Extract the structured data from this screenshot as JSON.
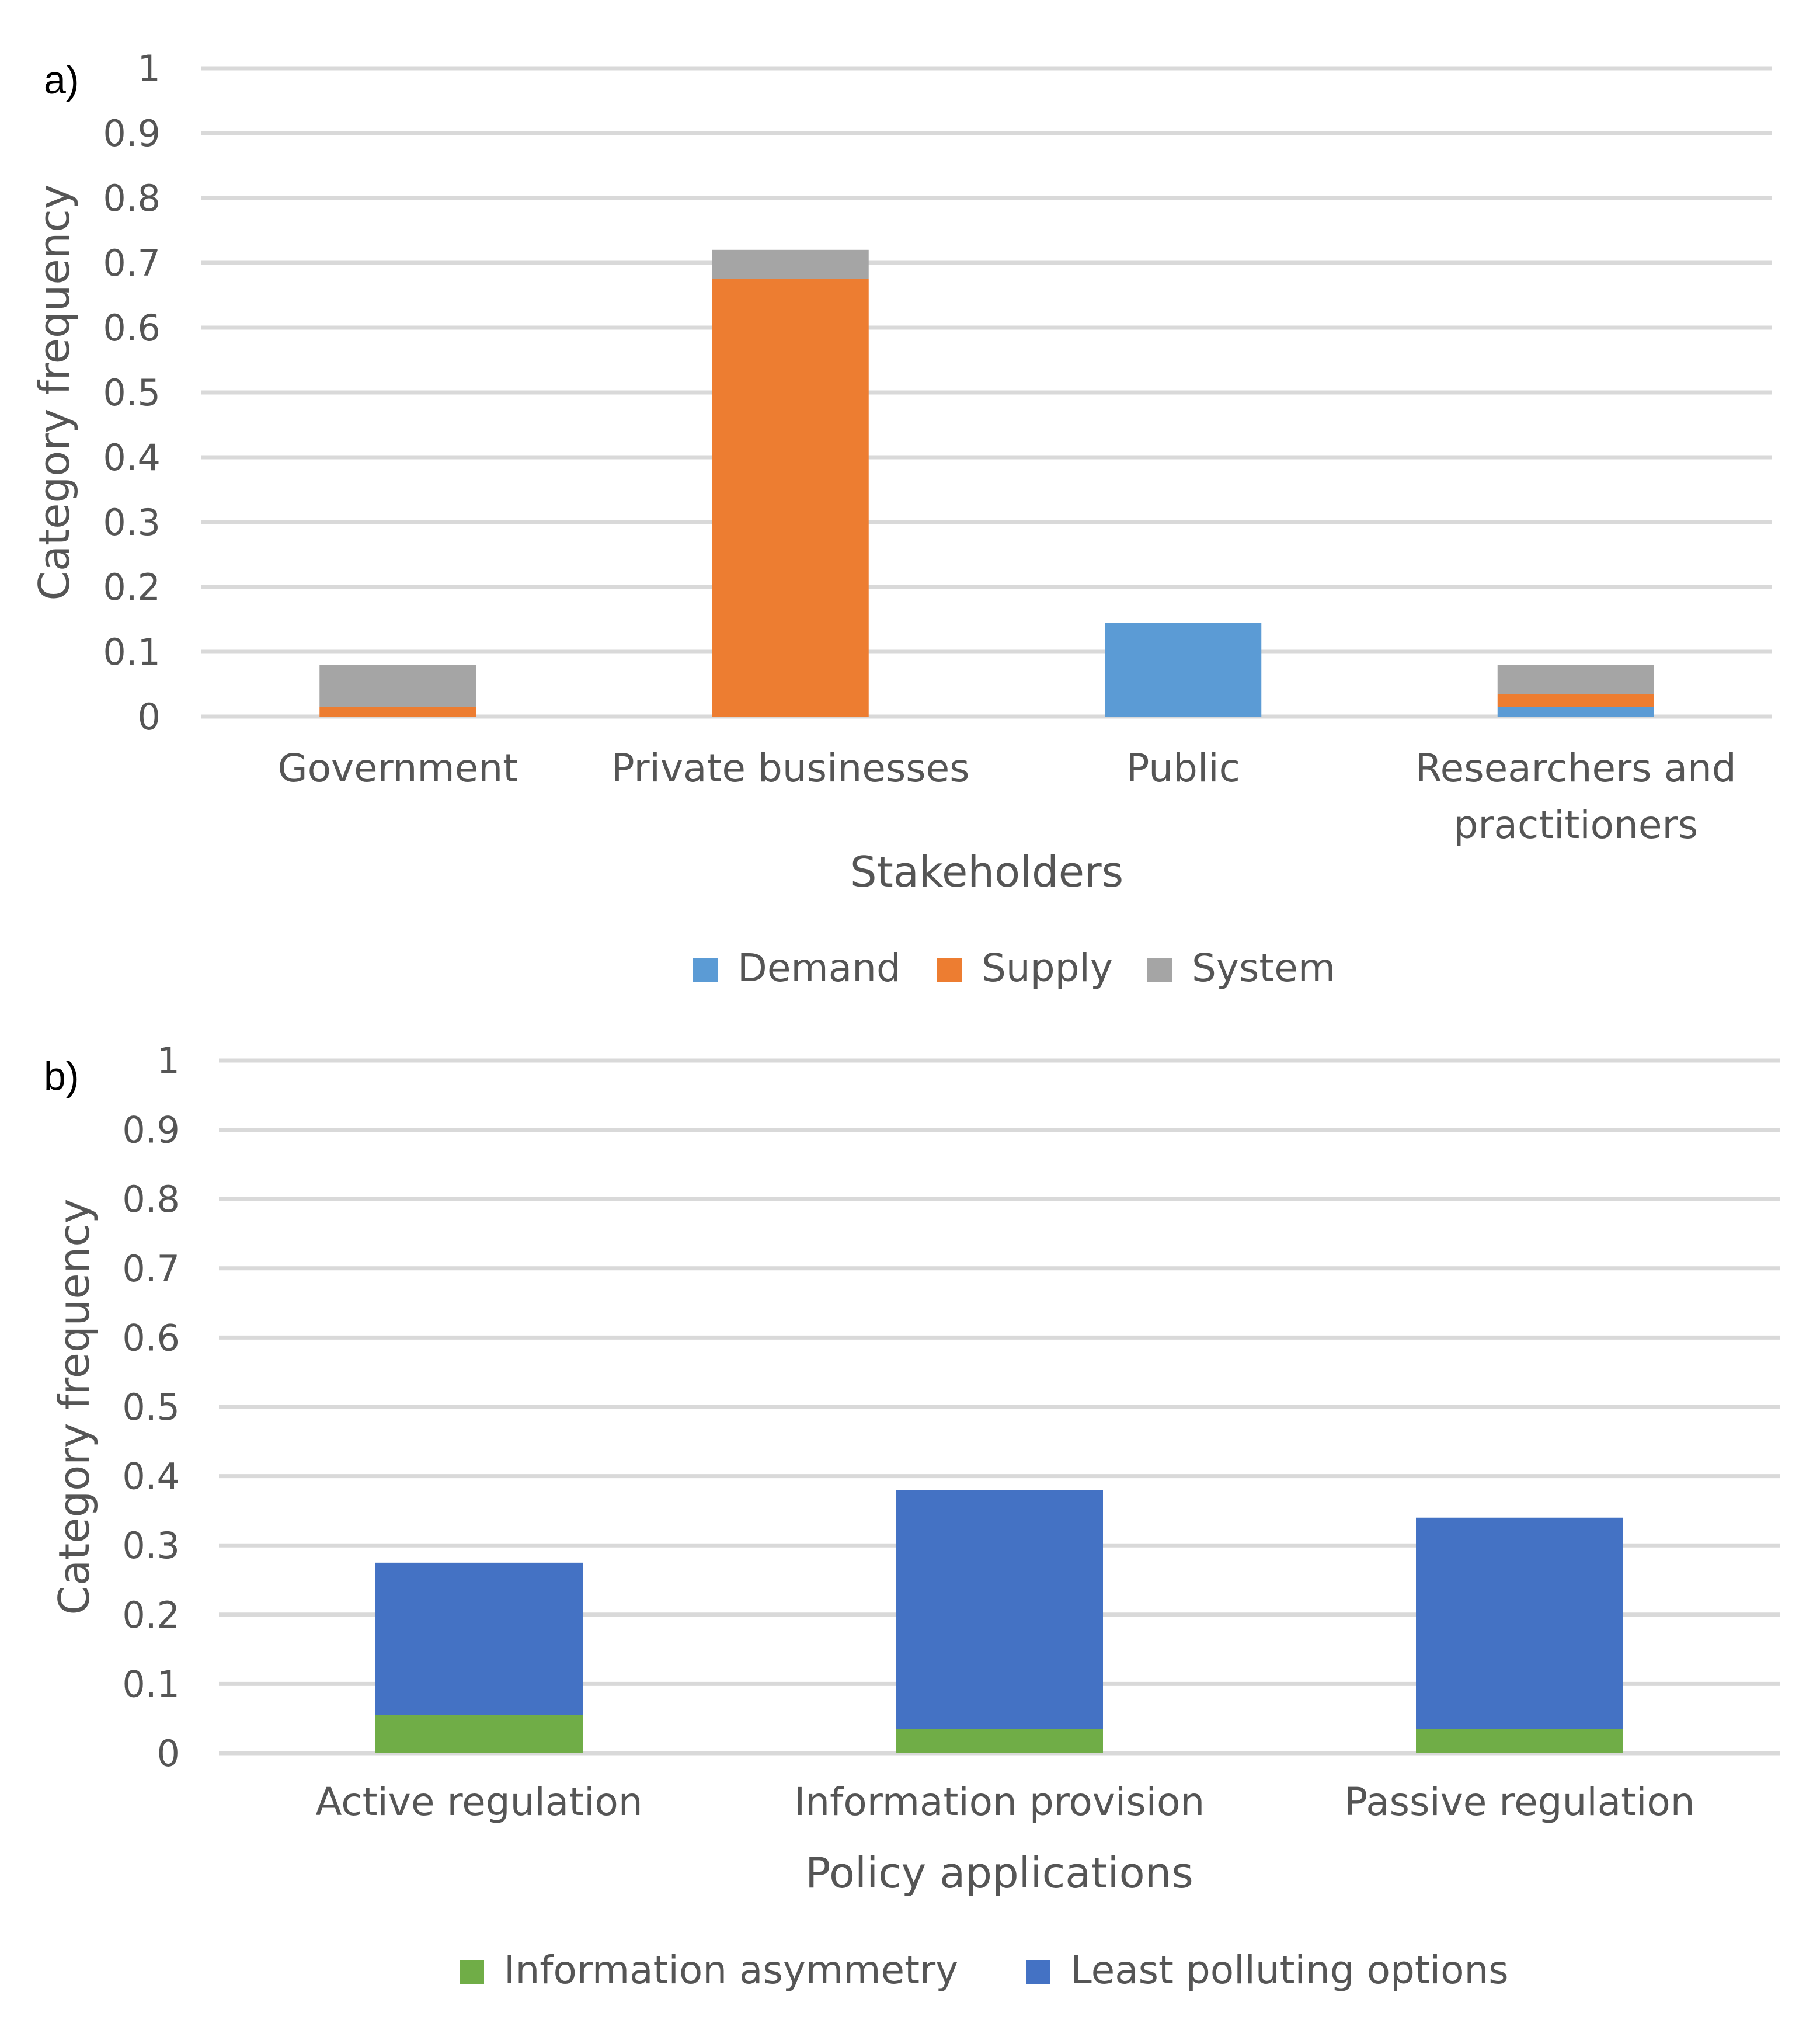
{
  "chart_data": [
    {
      "panel": "a)",
      "type": "bar",
      "stacked": true,
      "categories": [
        [
          "Government"
        ],
        [
          "Private businesses"
        ],
        [
          "Public"
        ],
        [
          "Researchers and",
          "practitioners"
        ]
      ],
      "series": [
        {
          "name": "Demand",
          "color": "#5b9bd5",
          "values": [
            0,
            0,
            0.145,
            0.015
          ]
        },
        {
          "name": "Supply",
          "color": "#ed7d31",
          "values": [
            0.015,
            0.675,
            0,
            0.02
          ]
        },
        {
          "name": "System",
          "color": "#a5a5a5",
          "values": [
            0.065,
            0.045,
            0,
            0.045
          ]
        }
      ],
      "ylabel": "Category frequency",
      "xlabel": "Stakeholders",
      "ylim": [
        0,
        1
      ],
      "yticks": [
        "0",
        "0.1",
        "0.2",
        "0.3",
        "0.4",
        "0.5",
        "0.6",
        "0.7",
        "0.8",
        "0.9",
        "1"
      ],
      "grid": true,
      "legend": "bottom"
    },
    {
      "panel": "b)",
      "type": "bar",
      "stacked": true,
      "categories": [
        [
          "Active regulation"
        ],
        [
          "Information provision"
        ],
        [
          "Passive regulation"
        ]
      ],
      "series": [
        {
          "name": "Information asymmetry",
          "color": "#70ad47",
          "values": [
            0.055,
            0.035,
            0.035
          ]
        },
        {
          "name": "Least polluting options",
          "color": "#4472c4",
          "values": [
            0.22,
            0.345,
            0.305
          ]
        }
      ],
      "ylabel": "Category frequency",
      "xlabel": "Policy applications",
      "ylim": [
        0,
        1
      ],
      "yticks": [
        "0",
        "0.1",
        "0.2",
        "0.3",
        "0.4",
        "0.5",
        "0.6",
        "0.7",
        "0.8",
        "0.9",
        "1"
      ],
      "grid": true,
      "legend": "bottom"
    }
  ]
}
